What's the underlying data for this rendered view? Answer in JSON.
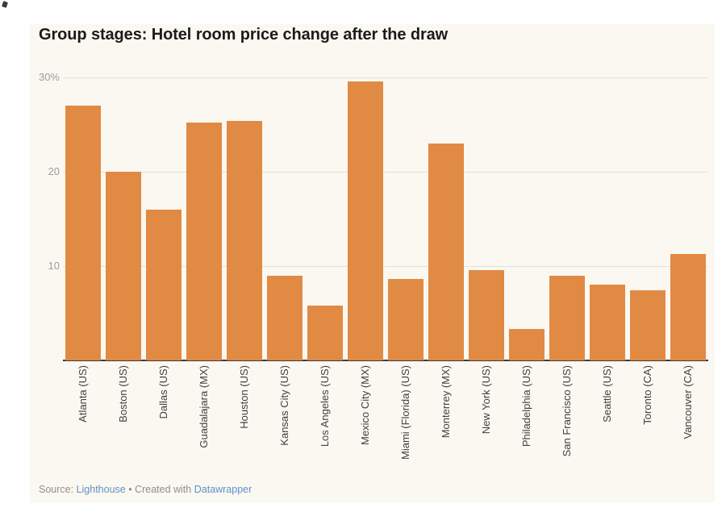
{
  "chart_data": {
    "type": "bar",
    "title": "Group stages: Hotel room price change after the draw",
    "categories": [
      "Atlanta (US)",
      "Boston (US)",
      "Dallas (US)",
      "Guadalajara (MX)",
      "Houston (US)",
      "Kansas City (US)",
      "Los Angeles (US)",
      "Mexico City (MX)",
      "Miami (Florida) (US)",
      "Monterrey (MX)",
      "New York (US)",
      "Philadelphia (US)",
      "San Francisco (US)",
      "Seattle (US)",
      "Toronto (CA)",
      "Vancouver (CA)"
    ],
    "values": [
      27,
      20,
      16,
      25.2,
      25.4,
      9,
      5.8,
      29.6,
      8.6,
      23,
      9.6,
      3.3,
      9,
      8,
      7.4,
      11.3
    ],
    "unit": "%",
    "xlabel": "",
    "ylabel": "",
    "ylim": [
      0,
      30
    ],
    "yticks": [
      {
        "value": 30,
        "label": "30%"
      },
      {
        "value": 20,
        "label": "20"
      },
      {
        "value": 10,
        "label": "10"
      }
    ],
    "grid": true,
    "legend_position": "none",
    "bar_color": "#E18A44",
    "panel_background": "#FBF8F1",
    "gridline_color": "#E4E0D7",
    "axis_line_color": "#3b3b3b"
  },
  "footer": {
    "source_prefix": "Source: ",
    "source_link": "Lighthouse",
    "separator": " • ",
    "created_text": "Created with ",
    "tool_link": "Datawrapper",
    "link_color": "#5E92C9"
  }
}
